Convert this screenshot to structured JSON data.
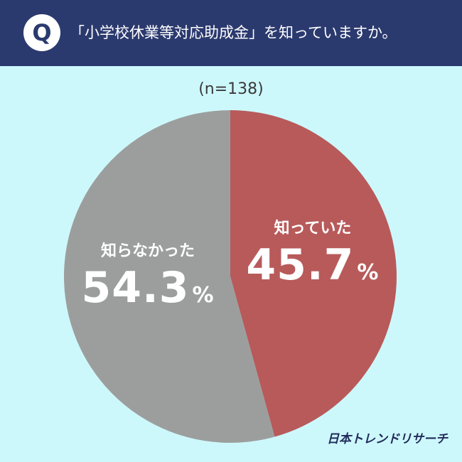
{
  "header": {
    "badge": "Q",
    "question": "「小学校休業等対応助成金」を知っていますか。"
  },
  "chart_data": {
    "type": "pie",
    "sample_size": "(n=138)",
    "slices": [
      {
        "label": "知っていた",
        "value": 45.7,
        "display": "45.7",
        "color": "#b85a5a"
      },
      {
        "label": "知らなかった",
        "value": 54.3,
        "display": "54.3",
        "color": "#9c9e9e"
      }
    ],
    "percent_sign": "%"
  },
  "footer": {
    "brand": "日本トレンドリサーチ"
  }
}
